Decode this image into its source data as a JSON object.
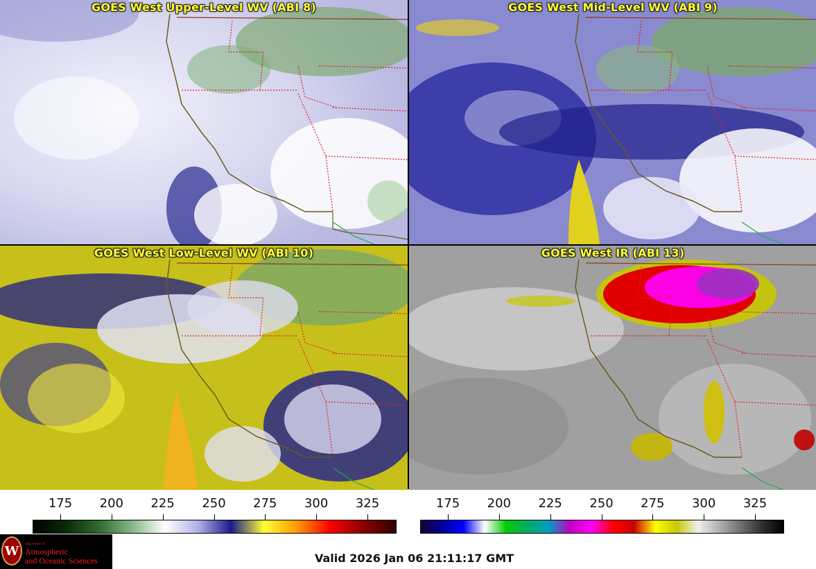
{
  "panels": [
    {
      "title": "GOES West Upper-Level WV (ABI 8)"
    },
    {
      "title": "GOES West Mid-Level WV (ABI 9)"
    },
    {
      "title": "GOES West Low-Level WV (ABI 10)"
    },
    {
      "title": "GOES West IR (ABI 13)"
    }
  ],
  "colorbars": {
    "wv": {
      "ticks": [
        "175",
        "200",
        "225",
        "250",
        "275",
        "300",
        "325"
      ],
      "stops": [
        "#000000",
        "#0a2a0a",
        "#2f6b2f",
        "#88b888",
        "#ffffff",
        "#b0b0e8",
        "#1a1a8c",
        "#ffff33",
        "#ff9900",
        "#ff0000",
        "#8b0000",
        "#300000"
      ]
    },
    "ir": {
      "ticks": [
        "175",
        "200",
        "225",
        "250",
        "275",
        "300",
        "325"
      ],
      "stops": [
        "#1a0033",
        "#000099",
        "#0000ff",
        "#ffffff",
        "#00cc00",
        "#00aa66",
        "#00a0c0",
        "#c000c0",
        "#ff00ff",
        "#ff0000",
        "#cc0000",
        "#ffff00",
        "#c8c800",
        "#f0f0f0",
        "#b0b0b0",
        "#707070",
        "#303030",
        "#000000"
      ]
    }
  },
  "logo": {
    "dept": "Department of",
    "line1": "Atmospheric",
    "line2": "and Oceanic Sciences",
    "seal_letter": "W"
  },
  "valid_text": "Valid 2026 Jan 06 21:11:17 GMT"
}
